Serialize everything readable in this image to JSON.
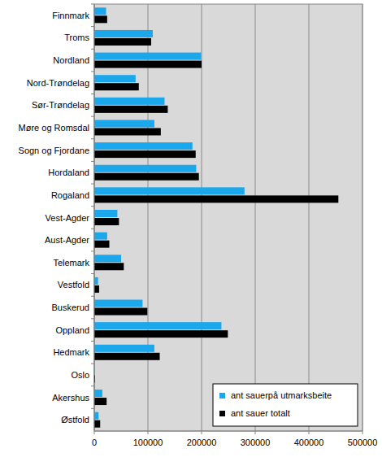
{
  "chart_data": {
    "type": "bar",
    "orientation": "horizontal",
    "categories": [
      "Finnmark",
      "Troms",
      "Nordland",
      "Nord-Trøndelag",
      "Sør-Trøndelag",
      "Møre og Romsdal",
      "Sogn og Fjordane",
      "Hordaland",
      "Rogaland",
      "Vest-Agder",
      "Aust-Agder",
      "Telemark",
      "Vestfold",
      "Buskerud",
      "Oppland",
      "Hedmark",
      "Oslo",
      "Akershus",
      "Østfold"
    ],
    "series": [
      {
        "name": "ant sauerpå utmarksbeite",
        "color": "#1aa7ec",
        "values": [
          22000,
          109000,
          199000,
          77000,
          131000,
          112000,
          183000,
          190000,
          280000,
          43000,
          24000,
          50000,
          7000,
          90000,
          237000,
          112000,
          500,
          15000,
          8000
        ]
      },
      {
        "name": "ant sauer totalt",
        "color": "#000000",
        "values": [
          24000,
          106000,
          200000,
          83000,
          137000,
          124000,
          189000,
          195000,
          455000,
          46000,
          28000,
          55000,
          9000,
          99000,
          249000,
          122000,
          1500,
          23000,
          11000
        ]
      }
    ],
    "xlim": [
      0,
      500000
    ],
    "xticks": [
      0,
      100000,
      200000,
      300000,
      400000,
      500000
    ],
    "grid": true,
    "legend": "lower right"
  }
}
